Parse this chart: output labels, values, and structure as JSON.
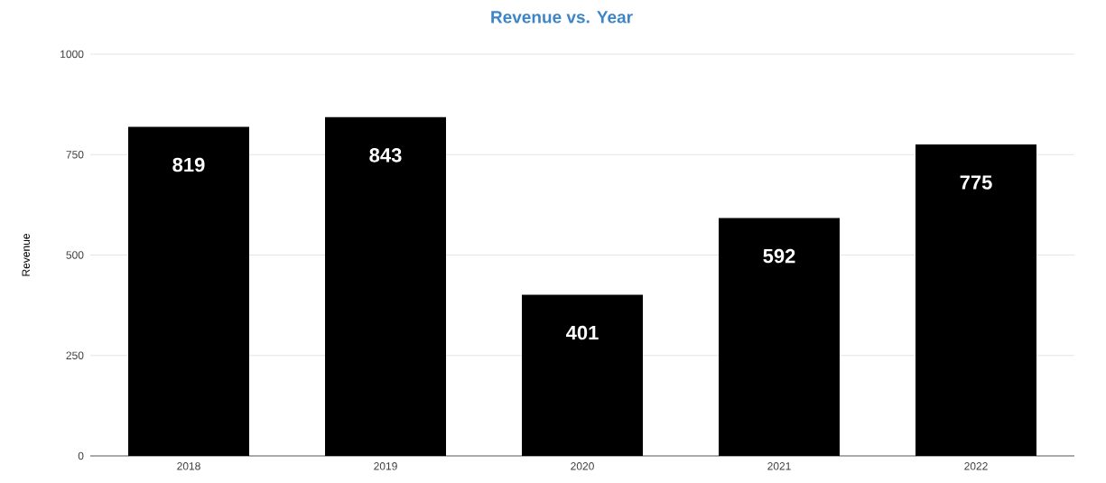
{
  "chart_data": {
    "type": "bar",
    "title": "Revenue vs. Year",
    "ylabel": "Revenue",
    "categories": [
      "2018",
      "2019",
      "2020",
      "2021",
      "2022"
    ],
    "values": [
      819,
      843,
      401,
      592,
      775
    ],
    "color": "#000000",
    "ylim": [
      0,
      1000
    ],
    "yticks": [
      0,
      250,
      500,
      750,
      1000
    ],
    "grid": "y",
    "data_labels": true
  }
}
